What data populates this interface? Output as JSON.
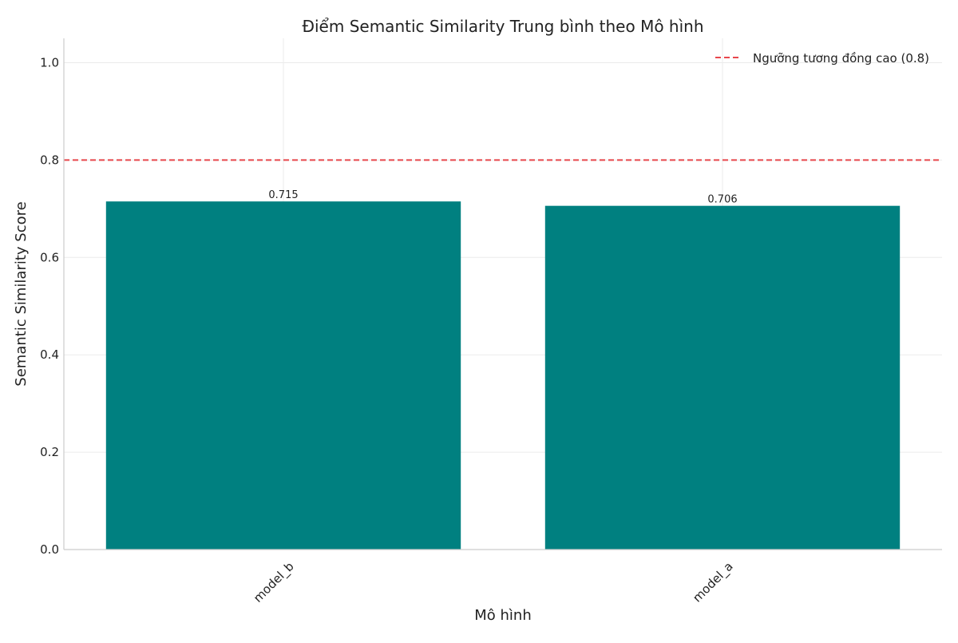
{
  "chart_data": {
    "type": "bar",
    "title": "Điểm Semantic Similarity Trung bình theo Mô hình",
    "xlabel": "Mô hình",
    "ylabel": "Semantic Similarity Score",
    "categories": [
      "model_b",
      "model_a"
    ],
    "values": [
      0.715,
      0.706
    ],
    "data_labels": [
      "0.715",
      "0.706"
    ],
    "ylim": [
      0,
      1.05
    ],
    "yticks": [
      0.0,
      0.2,
      0.4,
      0.6,
      0.8,
      1.0
    ],
    "ytick_labels": [
      "0.0",
      "0.2",
      "0.4",
      "0.6",
      "0.8",
      "1.0"
    ],
    "grid": true,
    "bar_color": "#008080",
    "threshold": {
      "value": 0.8,
      "label": "Ngưỡng tương đồng cao (0.8)",
      "color": "#e8474c",
      "style": "dashed"
    },
    "legend_position": "top-right"
  }
}
